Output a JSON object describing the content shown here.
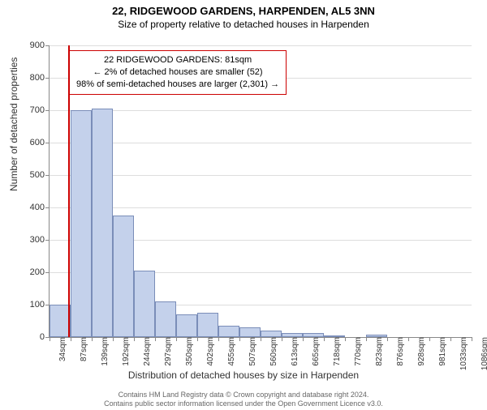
{
  "title_line1": "22, RIDGEWOOD GARDENS, HARPENDEN, AL5 3NN",
  "title_line2": "Size of property relative to detached houses in Harpenden",
  "ylabel": "Number of detached properties",
  "xlabel": "Distribution of detached houses by size in Harpenden",
  "info_box": {
    "line1": "22 RIDGEWOOD GARDENS: 81sqm",
    "line2": "← 2% of detached houses are smaller (52)",
    "line3": "98% of semi-detached houses are larger (2,301) →"
  },
  "chart": {
    "type": "histogram",
    "ylim": [
      0,
      900
    ],
    "ytick_step": 100,
    "yticks": [
      0,
      100,
      200,
      300,
      400,
      500,
      600,
      700,
      800,
      900
    ],
    "xticks_labels": [
      "34sqm",
      "87sqm",
      "139sqm",
      "192sqm",
      "244sqm",
      "297sqm",
      "350sqm",
      "402sqm",
      "455sqm",
      "507sqm",
      "560sqm",
      "613sqm",
      "665sqm",
      "718sqm",
      "770sqm",
      "823sqm",
      "876sqm",
      "928sqm",
      "981sqm",
      "1033sqm",
      "1086sqm"
    ],
    "bar_values": [
      100,
      700,
      705,
      375,
      205,
      110,
      70,
      75,
      35,
      30,
      20,
      12,
      12,
      5,
      0,
      8,
      0,
      0,
      0,
      0
    ],
    "bar_color": "#c4d1eb",
    "bar_border_color": "#7a8db8",
    "grid_color": "#dddddd",
    "background_color": "#ffffff",
    "marker_line_color": "#cc0000",
    "marker_x_value": 81,
    "x_range": [
      34,
      1086
    ]
  },
  "footer": {
    "line1": "Contains HM Land Registry data © Crown copyright and database right 2024.",
    "line2": "Contains public sector information licensed under the Open Government Licence v3.0."
  }
}
